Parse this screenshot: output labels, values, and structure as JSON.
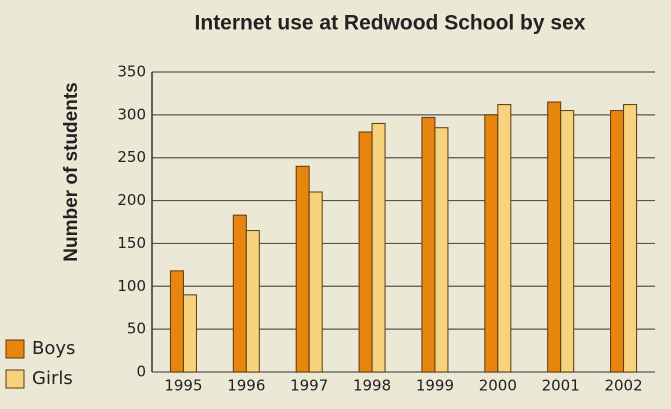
{
  "chart_data": {
    "type": "bar",
    "title": "Internet use at Redwood School by sex",
    "y_label": "Number of students",
    "categories": [
      "1995",
      "1996",
      "1997",
      "1998",
      "1999",
      "2000",
      "2001",
      "2002"
    ],
    "series": [
      {
        "name": "Boys",
        "color": "#e8850f",
        "values": [
          118,
          183,
          240,
          280,
          297,
          300,
          315,
          305
        ]
      },
      {
        "name": "Girls",
        "color": "#f6d37c",
        "values": [
          90,
          165,
          210,
          290,
          285,
          312,
          305,
          312
        ]
      }
    ],
    "ylim": [
      0,
      350
    ],
    "yticks": [
      0,
      50,
      100,
      150,
      200,
      250,
      300,
      350
    ],
    "grid": true,
    "legend": "bottom-left"
  }
}
